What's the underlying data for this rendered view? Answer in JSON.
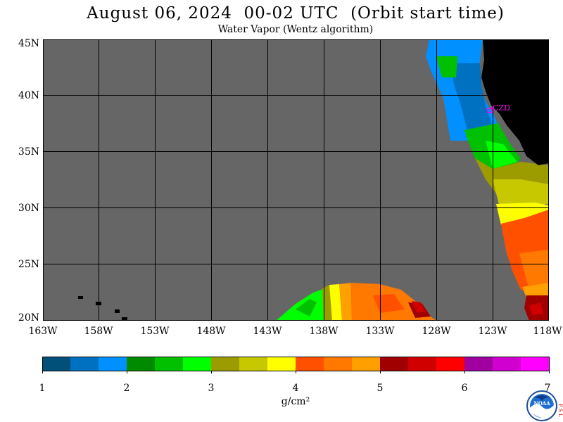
{
  "header": {
    "title": "August 06, 2024  00-02 UTC  (Orbit start time)",
    "subtitle": "Water Vapor (Wentz algorithm)"
  },
  "map": {
    "lat_labels": [
      "45N",
      "40N",
      "35N",
      "30N",
      "25N",
      "20N"
    ],
    "lon_labels": [
      "163W",
      "158W",
      "153W",
      "148W",
      "143W",
      "138W",
      "133W",
      "128W",
      "123W",
      "118W"
    ],
    "station_label": "CZD",
    "no_data_color": "#666666",
    "land_color": "#000000",
    "gridline_color": "#000000"
  },
  "colorbar": {
    "colors": [
      "#00507a",
      "#0070c0",
      "#0090ff",
      "#008a00",
      "#00c000",
      "#00ff00",
      "#9c9c00",
      "#c8c800",
      "#ffff00",
      "#ff5000",
      "#ff7800",
      "#ffa000",
      "#a00000",
      "#d00000",
      "#ff0000",
      "#a000a0",
      "#d000d0",
      "#ff00ff"
    ],
    "tick_labels": [
      "1",
      "2",
      "3",
      "4",
      "5",
      "6",
      "7"
    ],
    "unit_label": "g/cm²"
  },
  "logo": {
    "text": "NOAA",
    "side_letters": "PSL"
  }
}
